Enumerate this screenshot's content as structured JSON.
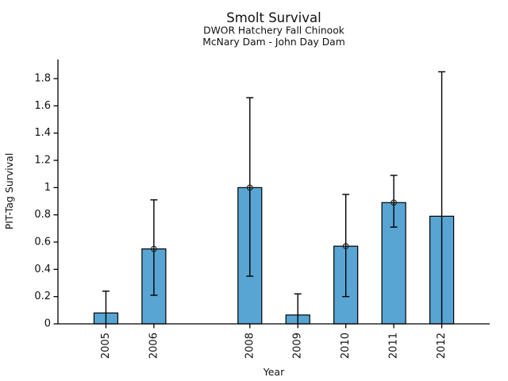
{
  "chart_data": {
    "type": "bar",
    "title": "Smolt Survival",
    "subtitle_line1": "DWOR Hatchery Fall Chinook",
    "subtitle_line2": "McNary Dam - John Day Dam",
    "xlabel": "Year",
    "ylabel": "PIT-Tag Survival",
    "categories": [
      2005,
      2006,
      2008,
      2009,
      2010,
      2011,
      2012
    ],
    "values": [
      0.08,
      0.55,
      1.0,
      0.065,
      0.57,
      0.89,
      0.79
    ],
    "error_low": [
      0.0,
      0.21,
      0.35,
      0.0,
      0.2,
      0.71,
      0.0
    ],
    "error_high": [
      0.24,
      0.91,
      1.66,
      0.22,
      0.95,
      1.09,
      1.85
    ],
    "marker_on_bar": [
      false,
      true,
      true,
      false,
      true,
      true,
      false
    ],
    "xlim": [
      2004,
      2013
    ],
    "ylim": [
      0,
      1.94
    ],
    "yticks": [
      0,
      0.2,
      0.4,
      0.6,
      0.8,
      1,
      1.2,
      1.4,
      1.6,
      1.8
    ],
    "ytick_labels": [
      "0",
      "0.2",
      "0.4",
      "0.6",
      "0.8",
      "1",
      "1.2",
      "1.4",
      "1.6",
      "1.8"
    ],
    "grid": false,
    "legend": null,
    "bar_color": "#58A5D3",
    "bar_edge_color": "#000000",
    "errorbar_color": "#000000",
    "axis_color": "#000000",
    "text_color": "#111111"
  }
}
